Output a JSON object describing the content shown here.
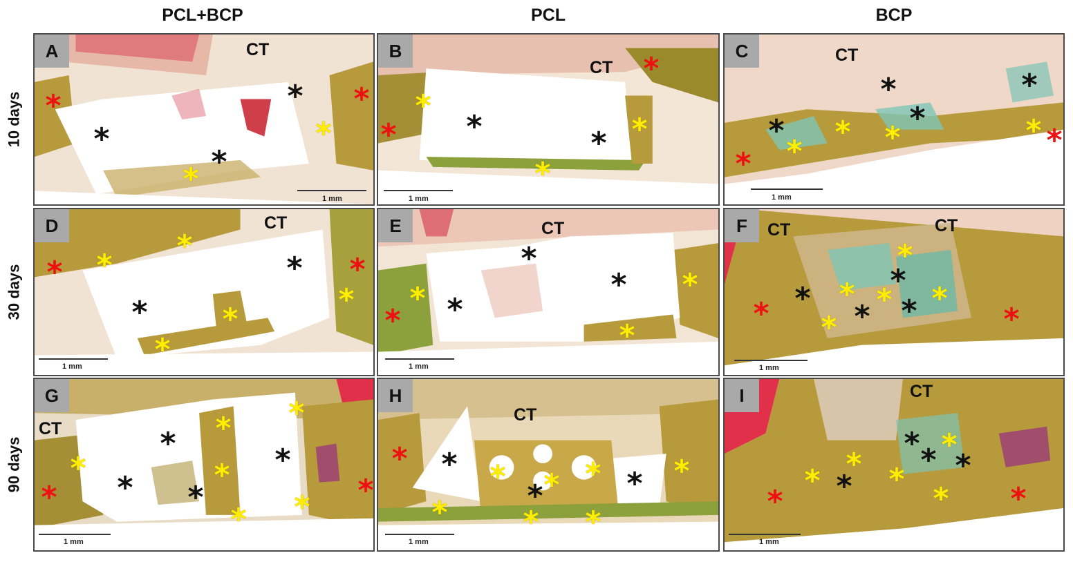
{
  "columns": [
    "PCL+BCP",
    "PCL",
    "BCP"
  ],
  "rows": [
    "10 days",
    "30 days",
    "90 days"
  ],
  "scale_label": "1 mm",
  "ct_label": "CT",
  "star_glyph": "*",
  "colors": {
    "background_tissue": "#f7efe6",
    "bone_olive": "#b79a3c",
    "muscle_red": "#d9485a",
    "mineral_teal": "#7ec5b5",
    "black_marker": "#111111",
    "yellow_marker": "#ffee00",
    "red_marker": "#ee1111"
  },
  "panels": [
    {
      "letter": "A"
    },
    {
      "letter": "B"
    },
    {
      "letter": "C"
    },
    {
      "letter": "D"
    },
    {
      "letter": "E"
    },
    {
      "letter": "F"
    },
    {
      "letter": "G"
    },
    {
      "letter": "H"
    },
    {
      "letter": "I"
    }
  ]
}
